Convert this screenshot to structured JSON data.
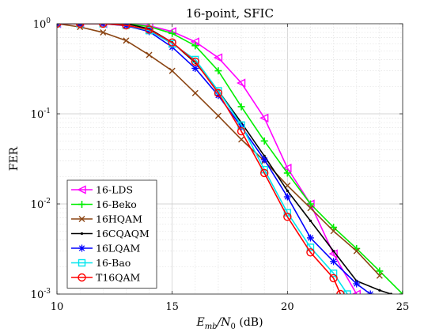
{
  "chart_data": {
    "type": "line",
    "title": "16-point, SFIC",
    "xlabel": {
      "main": "E",
      "sub": "mb",
      "mid": "/N",
      "sub2": "0",
      "rest": " (dB)"
    },
    "ylabel": "FER",
    "x_scale": "linear",
    "y_scale": "log",
    "xlim": [
      10,
      25
    ],
    "ylim": [
      0.001,
      1
    ],
    "x_ticks": [
      "10",
      "15",
      "20",
      "25"
    ],
    "x_tick_values": [
      10,
      15,
      20,
      25
    ],
    "y_ticks": [
      {
        "value": 1,
        "base": "10",
        "exp": "0"
      },
      {
        "value": 0.1,
        "base": "10",
        "exp": "-1"
      },
      {
        "value": 0.01,
        "base": "10",
        "exp": "-2"
      },
      {
        "value": 0.001,
        "base": "10",
        "exp": "-3"
      }
    ],
    "grid": true,
    "legend_position": "bottom-left",
    "series": [
      {
        "name": "16-LDS",
        "color": "#ff00ff",
        "marker": "triangle-left",
        "x": [
          10,
          11,
          12,
          13,
          14,
          15,
          16,
          17,
          18,
          19,
          20,
          21,
          22,
          23
        ],
        "y": [
          1.0,
          1.0,
          1.0,
          1.0,
          0.95,
          0.82,
          0.63,
          0.42,
          0.22,
          0.09,
          0.025,
          0.01,
          0.0028,
          0.001
        ]
      },
      {
        "name": "16-Beko",
        "color": "#00ee00",
        "marker": "plus",
        "x": [
          10,
          11,
          12,
          13,
          14,
          15,
          16,
          17,
          18,
          19,
          20,
          21,
          22,
          23,
          24,
          25
        ],
        "y": [
          1.0,
          1.0,
          1.0,
          1.0,
          0.93,
          0.78,
          0.57,
          0.3,
          0.12,
          0.05,
          0.022,
          0.01,
          0.0055,
          0.0032,
          0.0018,
          0.001
        ]
      },
      {
        "name": "16HQAM",
        "color": "#8b4513",
        "marker": "x",
        "x": [
          10,
          11,
          12,
          13,
          14,
          15,
          16,
          17,
          18,
          19,
          20,
          21,
          22,
          23,
          24
        ],
        "y": [
          1.0,
          0.92,
          0.8,
          0.65,
          0.45,
          0.3,
          0.17,
          0.095,
          0.052,
          0.03,
          0.016,
          0.009,
          0.005,
          0.003,
          0.0016
        ]
      },
      {
        "name": "16CQAQM",
        "color": "#000000",
        "marker": "dot",
        "x": [
          10,
          11,
          12,
          13,
          14,
          15,
          16,
          17,
          18,
          19,
          20,
          21,
          22,
          23,
          24,
          24.5
        ],
        "y": [
          1.0,
          1.0,
          1.0,
          1.0,
          0.88,
          0.62,
          0.37,
          0.18,
          0.08,
          0.034,
          0.014,
          0.0065,
          0.003,
          0.0014,
          0.0011,
          0.001
        ]
      },
      {
        "name": "16LQAM",
        "color": "#0000ff",
        "marker": "asterisk",
        "x": [
          10,
          11,
          12,
          13,
          14,
          15,
          16,
          17,
          18,
          19,
          20,
          21,
          22,
          23,
          23.6
        ],
        "y": [
          1.0,
          1.0,
          1.0,
          0.95,
          0.82,
          0.55,
          0.32,
          0.16,
          0.072,
          0.031,
          0.012,
          0.0042,
          0.0023,
          0.0013,
          0.001
        ]
      },
      {
        "name": "16-Bao",
        "color": "#00e5ee",
        "marker": "square",
        "x": [
          10,
          11,
          12,
          13,
          14,
          15,
          16,
          17,
          18,
          19,
          20,
          21,
          22,
          22.6
        ],
        "y": [
          1.0,
          1.0,
          1.0,
          0.96,
          0.84,
          0.6,
          0.4,
          0.18,
          0.075,
          0.024,
          0.008,
          0.0033,
          0.0017,
          0.001
        ]
      },
      {
        "name": "T16QAM",
        "color": "#ff0000",
        "marker": "circle",
        "x": [
          10,
          11,
          12,
          13,
          14,
          15,
          16,
          17,
          18,
          19,
          20,
          21,
          22,
          22.3
        ],
        "y": [
          1.0,
          1.0,
          1.0,
          0.96,
          0.86,
          0.62,
          0.38,
          0.17,
          0.064,
          0.022,
          0.0072,
          0.0029,
          0.0015,
          0.001
        ]
      }
    ]
  }
}
